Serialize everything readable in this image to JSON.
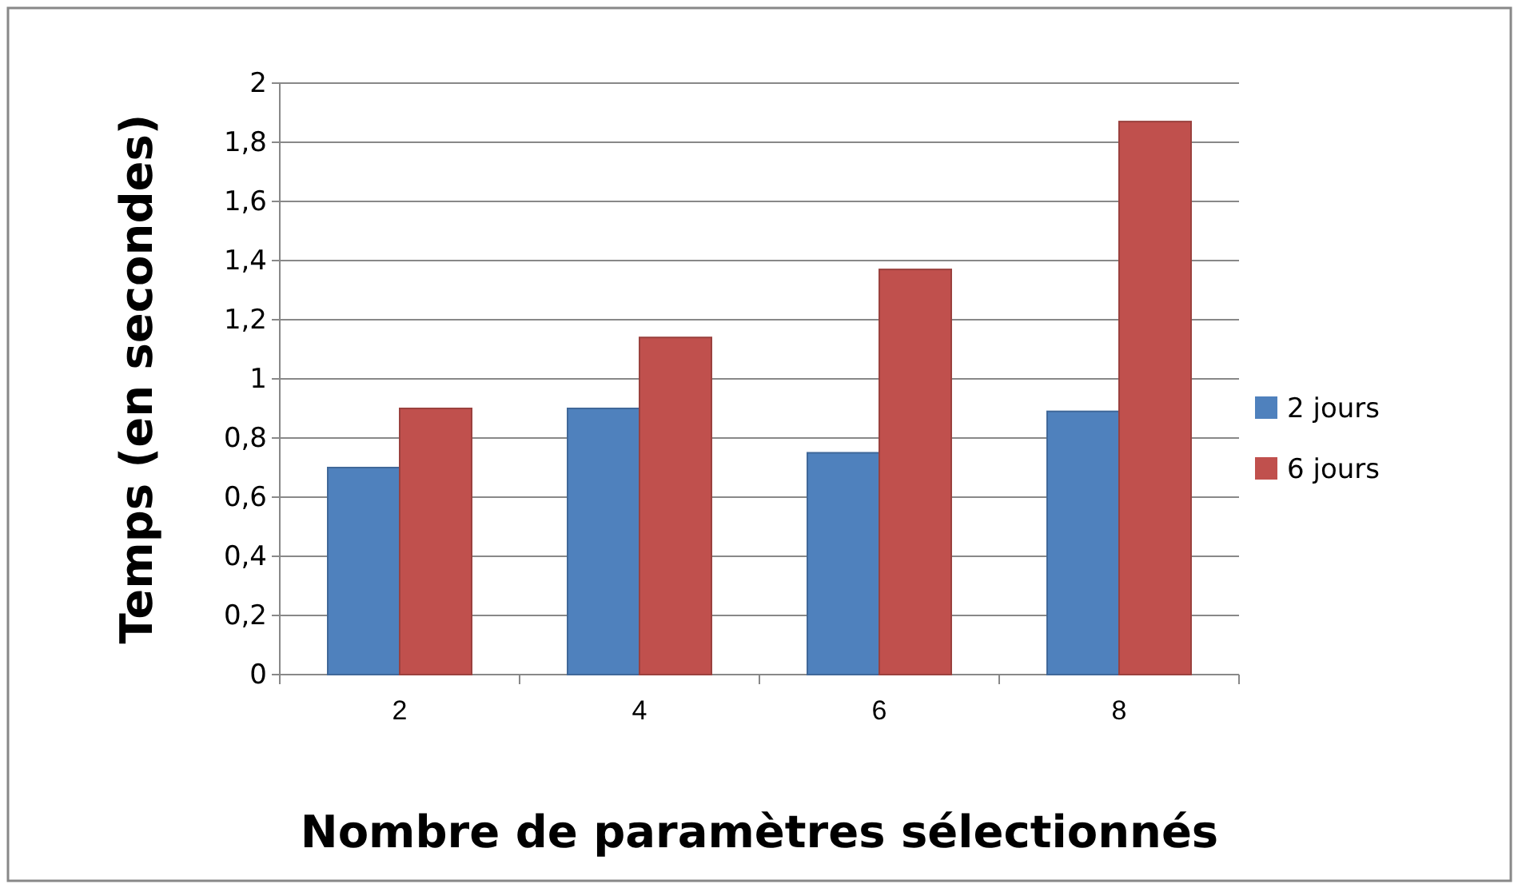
{
  "chart_data": {
    "type": "bar",
    "xlabel": "Nombre de paramètres sélectionnés",
    "ylabel": "Temps (en secondes)",
    "categories": [
      "2",
      "4",
      "6",
      "8"
    ],
    "series": [
      {
        "name": "2 jours",
        "color": "#4f81bd",
        "values": [
          0.7,
          0.9,
          0.75,
          0.89
        ]
      },
      {
        "name": "6 jours",
        "color": "#c0504d",
        "values": [
          0.9,
          1.14,
          1.37,
          1.87
        ]
      }
    ],
    "ylim": [
      0,
      2
    ],
    "yticks": [
      0,
      {
        "value": 0.2,
        "label": "0,2"
      },
      {
        "value": 0.4,
        "label": "0,4"
      },
      {
        "value": 0.6,
        "label": "0,6"
      },
      {
        "value": 0.8,
        "label": "0,8"
      },
      1,
      {
        "value": 1.2,
        "label": "1,2"
      },
      {
        "value": 1.4,
        "label": "1,4"
      },
      {
        "value": 1.6,
        "label": "1,6"
      },
      {
        "value": 1.8,
        "label": "1,8"
      },
      2
    ],
    "grid": "y",
    "legend": "right"
  }
}
